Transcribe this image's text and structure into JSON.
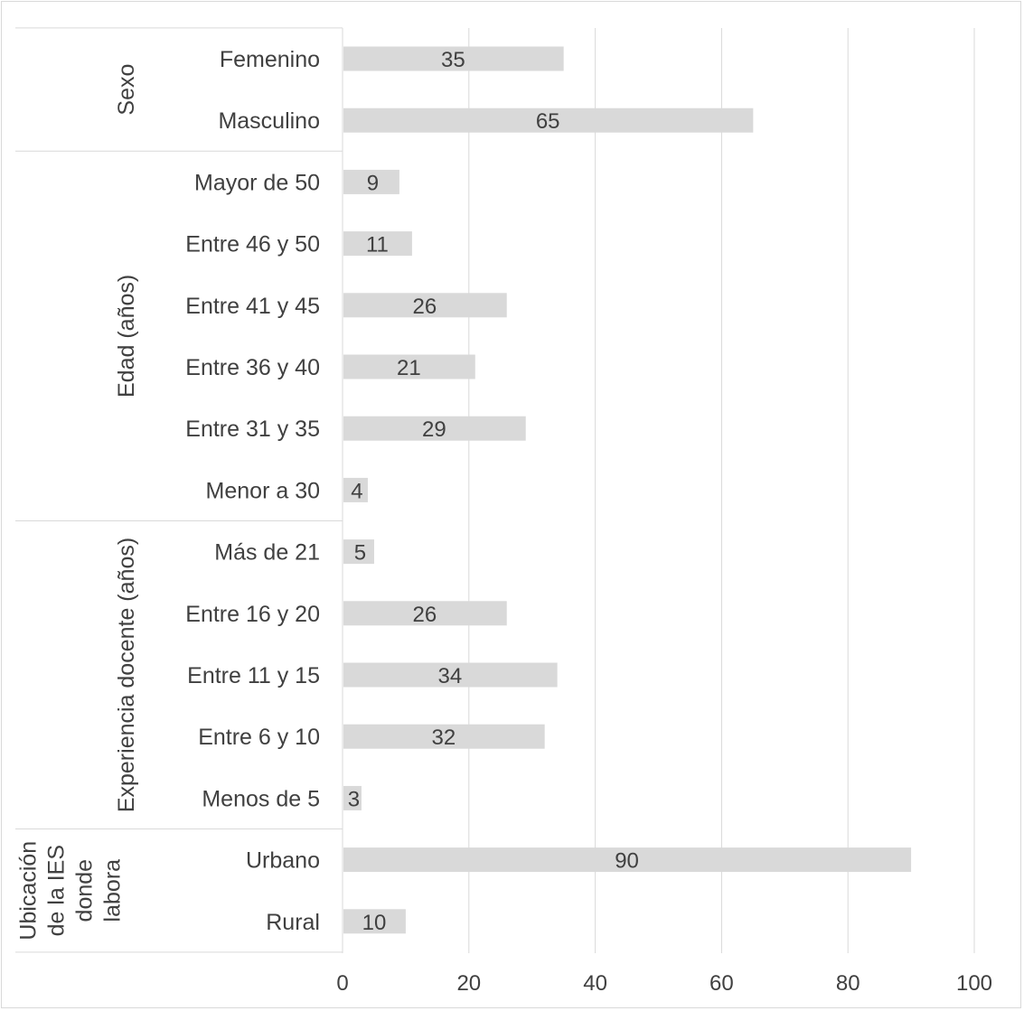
{
  "chart_data": {
    "type": "bar",
    "orientation": "horizontal",
    "xlim": [
      0,
      100
    ],
    "xticks": [
      0,
      20,
      40,
      60,
      80,
      100
    ],
    "grid": true,
    "bar_color": "#d9d9d9",
    "groups": [
      {
        "label_lines": [
          "Sexo"
        ],
        "categories": [
          {
            "label": "Femenino",
            "value": 35
          },
          {
            "label": "Masculino",
            "value": 65
          }
        ]
      },
      {
        "label_lines": [
          "Edad (años)"
        ],
        "categories": [
          {
            "label": "Mayor de 50",
            "value": 9
          },
          {
            "label": "Entre 46 y 50",
            "value": 11
          },
          {
            "label": "Entre 41 y 45",
            "value": 26
          },
          {
            "label": "Entre 36 y 40",
            "value": 21
          },
          {
            "label": "Entre 31 y 35",
            "value": 29
          },
          {
            "label": "Menor a 30",
            "value": 4
          }
        ]
      },
      {
        "label_lines": [
          "Experiencia docente (años)"
        ],
        "categories": [
          {
            "label": "Más de 21",
            "value": 5
          },
          {
            "label": "Entre 16 y 20",
            "value": 26
          },
          {
            "label": "Entre 11 y 15",
            "value": 34
          },
          {
            "label": "Entre 6 y 10",
            "value": 32
          },
          {
            "label": "Menos de 5",
            "value": 3
          }
        ]
      },
      {
        "label_lines": [
          "Ubicación",
          "de la IES",
          "donde",
          "labora"
        ],
        "categories": [
          {
            "label": "Urbano",
            "value": 90
          },
          {
            "label": "Rural",
            "value": 10
          }
        ]
      }
    ]
  }
}
